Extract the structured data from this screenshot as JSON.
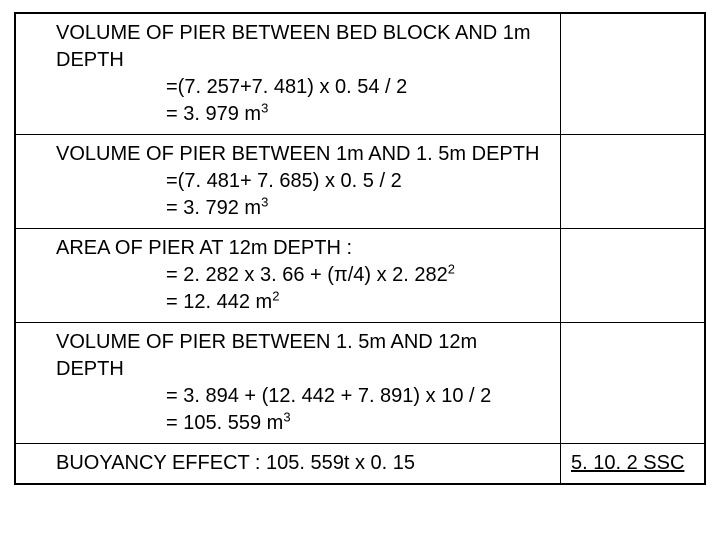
{
  "rows": [
    {
      "title": "VOLUME OF PIER BETWEEN BED BLOCK AND 1m DEPTH",
      "calc1": "=(7. 257+7. 481) x 0. 54 / 2",
      "calc2": "= 3. 979 m",
      "calc2_exp": "3",
      "right": ""
    },
    {
      "title": "VOLUME OF PIER BETWEEN 1m AND 1. 5m DEPTH",
      "calc1": "=(7. 481+ 7. 685) x 0. 5 / 2",
      "calc2": "= 3. 792 m",
      "calc2_exp": "3",
      "right": ""
    },
    {
      "title": " AREA OF PIER AT 12m DEPTH :",
      "calc1_pre": "=  2. 282 x 3. 66 + (π/4) x 2. 282",
      "calc1_exp": "2",
      "calc2": "= 12. 442 m",
      "calc2_exp": "2",
      "right": ""
    },
    {
      "title": "VOLUME OF PIER BETWEEN 1. 5m AND 12m DEPTH",
      "calc1": "= 3. 894 + (12. 442 + 7. 891) x 10 / 2",
      "calc2": "= 105. 559 m",
      "calc2_exp": "3",
      "right": ""
    },
    {
      "title": "BUOYANCY EFFECT : 105. 559t x 0. 15",
      "right": "5. 10. 2  SSC"
    }
  ]
}
